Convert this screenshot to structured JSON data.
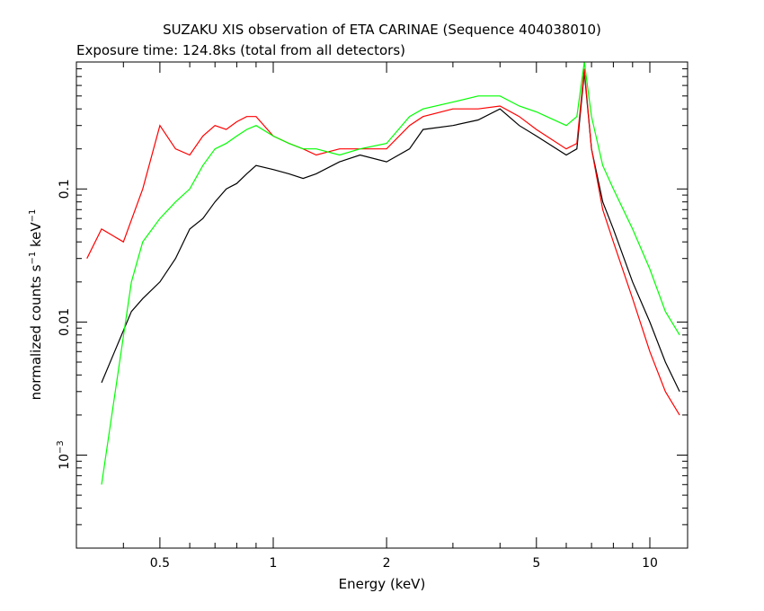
{
  "chart_data": {
    "type": "line",
    "title": "SUZAKU XIS observation of ETA CARINAE (Sequence 404038010)",
    "subtitle": "Exposure time: 124.8ks (total from all detectors)",
    "xlabel": "Energy (keV)",
    "ylabel_parts": {
      "a": "normalized counts s",
      "sup1": "−1",
      "b": " keV",
      "sup2": "−1"
    },
    "x_scale": "log",
    "y_scale": "log",
    "xlim": [
      0.3,
      12.6
    ],
    "ylim": [
      0.0002,
      0.9
    ],
    "x_ticks": [
      {
        "value": 0.5,
        "label": "0.5"
      },
      {
        "value": 1,
        "label": "1"
      },
      {
        "value": 2,
        "label": "2"
      },
      {
        "value": 5,
        "label": "5"
      },
      {
        "value": 10,
        "label": "10"
      }
    ],
    "y_ticks": [
      {
        "value": 0.001,
        "base": "10",
        "exp": "−3"
      },
      {
        "value": 0.01,
        "label": "0.01"
      },
      {
        "value": 0.1,
        "label": "0.1"
      }
    ],
    "colors": {
      "black": "#000000",
      "red": "#ff0000",
      "green": "#00ff00"
    },
    "series": [
      {
        "color": "black",
        "points": [
          [
            0.35,
            0.0035
          ],
          [
            0.42,
            0.012
          ],
          [
            0.45,
            0.015
          ],
          [
            0.5,
            0.02
          ],
          [
            0.55,
            0.03
          ],
          [
            0.6,
            0.05
          ],
          [
            0.65,
            0.06
          ],
          [
            0.7,
            0.08
          ],
          [
            0.75,
            0.1
          ],
          [
            0.8,
            0.11
          ],
          [
            0.85,
            0.13
          ],
          [
            0.9,
            0.15
          ],
          [
            1.0,
            0.14
          ],
          [
            1.1,
            0.13
          ],
          [
            1.2,
            0.12
          ],
          [
            1.3,
            0.13
          ],
          [
            1.5,
            0.16
          ],
          [
            1.7,
            0.18
          ],
          [
            2.0,
            0.16
          ],
          [
            2.3,
            0.2
          ],
          [
            2.5,
            0.28
          ],
          [
            3.0,
            0.3
          ],
          [
            3.5,
            0.33
          ],
          [
            4.0,
            0.4
          ],
          [
            4.5,
            0.3
          ],
          [
            5.0,
            0.25
          ],
          [
            6.0,
            0.18
          ],
          [
            6.4,
            0.2
          ],
          [
            6.7,
            0.75
          ],
          [
            7.0,
            0.2
          ],
          [
            7.5,
            0.08
          ],
          [
            8.0,
            0.05
          ],
          [
            9.0,
            0.02
          ],
          [
            10.0,
            0.01
          ],
          [
            11.0,
            0.005
          ],
          [
            12.0,
            0.003
          ]
        ]
      },
      {
        "color": "red",
        "points": [
          [
            0.32,
            0.03
          ],
          [
            0.35,
            0.05
          ],
          [
            0.4,
            0.04
          ],
          [
            0.45,
            0.1
          ],
          [
            0.5,
            0.3
          ],
          [
            0.55,
            0.2
          ],
          [
            0.6,
            0.18
          ],
          [
            0.65,
            0.25
          ],
          [
            0.7,
            0.3
          ],
          [
            0.75,
            0.28
          ],
          [
            0.8,
            0.32
          ],
          [
            0.85,
            0.35
          ],
          [
            0.9,
            0.35
          ],
          [
            1.0,
            0.25
          ],
          [
            1.1,
            0.22
          ],
          [
            1.2,
            0.2
          ],
          [
            1.3,
            0.18
          ],
          [
            1.5,
            0.2
          ],
          [
            1.7,
            0.2
          ],
          [
            2.0,
            0.2
          ],
          [
            2.3,
            0.3
          ],
          [
            2.5,
            0.35
          ],
          [
            3.0,
            0.4
          ],
          [
            3.5,
            0.4
          ],
          [
            4.0,
            0.42
          ],
          [
            4.5,
            0.35
          ],
          [
            5.0,
            0.28
          ],
          [
            6.0,
            0.2
          ],
          [
            6.4,
            0.22
          ],
          [
            6.7,
            0.8
          ],
          [
            7.0,
            0.2
          ],
          [
            7.5,
            0.07
          ],
          [
            8.0,
            0.04
          ],
          [
            9.0,
            0.015
          ],
          [
            10.0,
            0.006
          ],
          [
            11.0,
            0.003
          ],
          [
            12.0,
            0.002
          ]
        ]
      },
      {
        "color": "green",
        "points": [
          [
            0.35,
            0.0006
          ],
          [
            0.42,
            0.02
          ],
          [
            0.45,
            0.04
          ],
          [
            0.5,
            0.06
          ],
          [
            0.55,
            0.08
          ],
          [
            0.6,
            0.1
          ],
          [
            0.65,
            0.15
          ],
          [
            0.7,
            0.2
          ],
          [
            0.75,
            0.22
          ],
          [
            0.8,
            0.25
          ],
          [
            0.85,
            0.28
          ],
          [
            0.9,
            0.3
          ],
          [
            1.0,
            0.25
          ],
          [
            1.1,
            0.22
          ],
          [
            1.2,
            0.2
          ],
          [
            1.3,
            0.2
          ],
          [
            1.5,
            0.18
          ],
          [
            1.7,
            0.2
          ],
          [
            2.0,
            0.22
          ],
          [
            2.3,
            0.35
          ],
          [
            2.5,
            0.4
          ],
          [
            3.0,
            0.45
          ],
          [
            3.5,
            0.5
          ],
          [
            4.0,
            0.5
          ],
          [
            4.5,
            0.42
          ],
          [
            5.0,
            0.38
          ],
          [
            6.0,
            0.3
          ],
          [
            6.4,
            0.35
          ],
          [
            6.7,
            0.9
          ],
          [
            7.0,
            0.35
          ],
          [
            7.5,
            0.15
          ],
          [
            8.0,
            0.1
          ],
          [
            9.0,
            0.05
          ],
          [
            10.0,
            0.025
          ],
          [
            11.0,
            0.012
          ],
          [
            12.0,
            0.008
          ]
        ]
      }
    ]
  }
}
